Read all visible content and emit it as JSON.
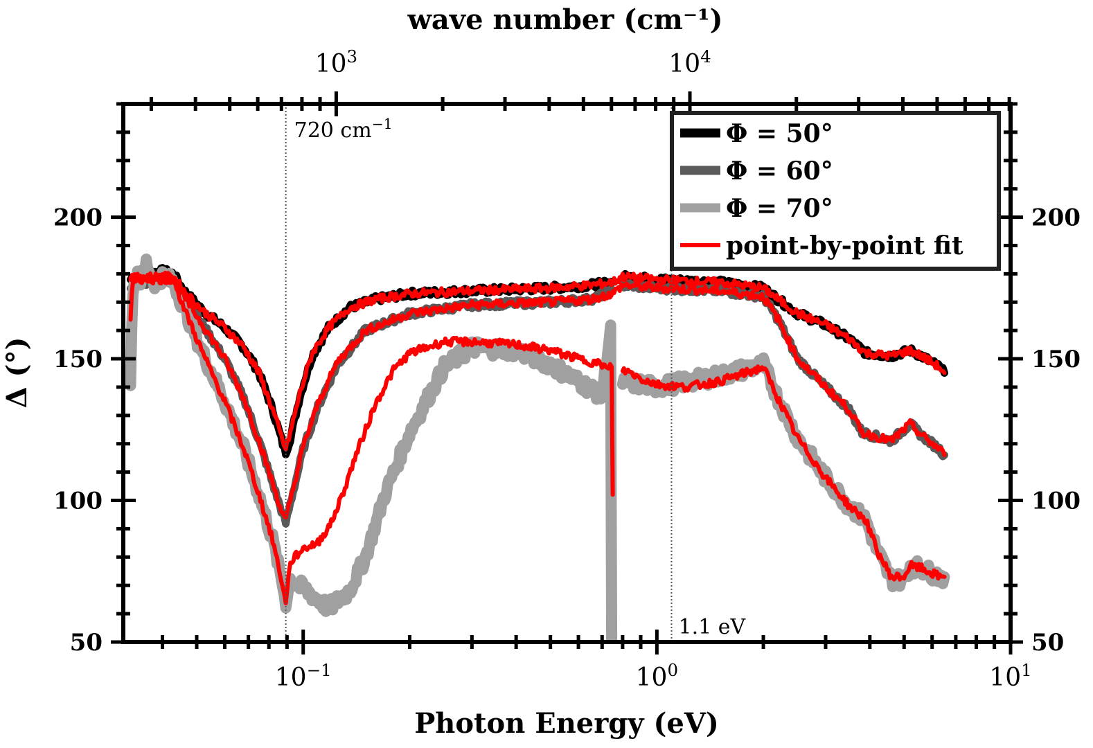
{
  "chart_data": {
    "type": "line",
    "xscale": "log",
    "xlabel": "Photon Energy (eV)",
    "ylabel": "Δ (°)",
    "top_xlabel": "wave number (cm⁻¹)",
    "xlim": [
      0.031,
      10
    ],
    "ylim": [
      50,
      240
    ],
    "x_ticks": [
      {
        "value": 0.1,
        "base": "10",
        "exp": "−1"
      },
      {
        "value": 1,
        "base": "10",
        "exp": "0"
      },
      {
        "value": 10,
        "base": "10",
        "exp": "1"
      }
    ],
    "y_ticks": [
      50,
      100,
      150,
      200
    ],
    "top_ticks": [
      {
        "value": 1000,
        "base": "10",
        "exp": "3"
      },
      {
        "value": 10000,
        "base": "10",
        "exp": "4"
      }
    ],
    "annotations": [
      {
        "x": 0.0893,
        "base": "720 cm",
        "exp": "−1"
      },
      {
        "x": 1.1,
        "base": "1.1 eV",
        "exp": ""
      }
    ],
    "legend": [
      {
        "label": "Φ = 50°",
        "color": "#000000"
      },
      {
        "label": "Φ = 60°",
        "color": "#5a5a5a"
      },
      {
        "label": "Φ = 70°",
        "color": "#a0a0a0"
      },
      {
        "label": "point-by-point fit",
        "color": "#ff0000"
      }
    ],
    "series": [
      {
        "name": "Φ = 50°",
        "color": "#000000",
        "width": 11,
        "noise": 1.2,
        "points": [
          [
            0.0325,
            178
          ],
          [
            0.034,
            181
          ],
          [
            0.036,
            180
          ],
          [
            0.04,
            181
          ],
          [
            0.043,
            180
          ],
          [
            0.046,
            174
          ],
          [
            0.052,
            167
          ],
          [
            0.06,
            161
          ],
          [
            0.068,
            154
          ],
          [
            0.075,
            145
          ],
          [
            0.082,
            132
          ],
          [
            0.0875,
            120
          ],
          [
            0.0893,
            117
          ],
          [
            0.092,
            122
          ],
          [
            0.098,
            137
          ],
          [
            0.106,
            151
          ],
          [
            0.118,
            161
          ],
          [
            0.135,
            168
          ],
          [
            0.16,
            171
          ],
          [
            0.2,
            173
          ],
          [
            0.3,
            174
          ],
          [
            0.5,
            175
          ],
          [
            0.65,
            176
          ],
          [
            0.75,
            177
          ],
          [
            0.755,
            null
          ],
          [
            0.8,
            179
          ],
          [
            1.0,
            178
          ],
          [
            1.5,
            177
          ],
          [
            2.0,
            175
          ],
          [
            2.2,
            171
          ],
          [
            2.5,
            166
          ],
          [
            3.0,
            162
          ],
          [
            3.5,
            157
          ],
          [
            3.9,
            152
          ],
          [
            4.6,
            151
          ],
          [
            5.2,
            153
          ],
          [
            5.6,
            151
          ],
          [
            6.3,
            147
          ],
          [
            6.5,
            145
          ]
        ]
      },
      {
        "name": "Φ = 60°",
        "color": "#5a5a5a",
        "width": 11,
        "noise": 1.2,
        "points": [
          [
            0.0325,
            176
          ],
          [
            0.034,
            178
          ],
          [
            0.036,
            177
          ],
          [
            0.04,
            178
          ],
          [
            0.043,
            178
          ],
          [
            0.046,
            172
          ],
          [
            0.052,
            162
          ],
          [
            0.06,
            150
          ],
          [
            0.068,
            136
          ],
          [
            0.075,
            121
          ],
          [
            0.082,
            106
          ],
          [
            0.0875,
            95
          ],
          [
            0.0893,
            92
          ],
          [
            0.092,
            99
          ],
          [
            0.1,
            118
          ],
          [
            0.11,
            133
          ],
          [
            0.125,
            148
          ],
          [
            0.15,
            160
          ],
          [
            0.2,
            166
          ],
          [
            0.3,
            169
          ],
          [
            0.5,
            170
          ],
          [
            0.65,
            171
          ],
          [
            0.75,
            174
          ],
          [
            0.755,
            null
          ],
          [
            0.8,
            176
          ],
          [
            1.0,
            175
          ],
          [
            1.5,
            174
          ],
          [
            2.0,
            172
          ],
          [
            2.2,
            164
          ],
          [
            2.5,
            150
          ],
          [
            3.0,
            140
          ],
          [
            3.5,
            132
          ],
          [
            3.8,
            124
          ],
          [
            4.6,
            121
          ],
          [
            5.2,
            127
          ],
          [
            5.6,
            123
          ],
          [
            6.3,
            118
          ],
          [
            6.5,
            116
          ]
        ]
      },
      {
        "name": "Φ = 70°",
        "color": "#a0a0a0",
        "width": 16,
        "noise": 2.6,
        "points": [
          [
            0.0325,
            142
          ],
          [
            0.033,
            175
          ],
          [
            0.034,
            181
          ],
          [
            0.035,
            176
          ],
          [
            0.036,
            184
          ],
          [
            0.038,
            177
          ],
          [
            0.04,
            179
          ],
          [
            0.043,
            177
          ],
          [
            0.046,
            168
          ],
          [
            0.052,
            152
          ],
          [
            0.06,
            135
          ],
          [
            0.068,
            118
          ],
          [
            0.075,
            102
          ],
          [
            0.082,
            86
          ],
          [
            0.0875,
            70
          ],
          [
            0.0893,
            64
          ],
          [
            0.092,
            72
          ],
          [
            0.097,
            70
          ],
          [
            0.105,
            67
          ],
          [
            0.118,
            62
          ],
          [
            0.135,
            68
          ],
          [
            0.15,
            80
          ],
          [
            0.17,
            102
          ],
          [
            0.2,
            124
          ],
          [
            0.25,
            147
          ],
          [
            0.3,
            154
          ],
          [
            0.4,
            153
          ],
          [
            0.5,
            148
          ],
          [
            0.6,
            142
          ],
          [
            0.7,
            137
          ],
          [
            0.72,
            150
          ],
          [
            0.74,
            161
          ],
          [
            0.745,
            50
          ],
          [
            0.755,
            null
          ],
          [
            0.8,
            142
          ],
          [
            1.0,
            140
          ],
          [
            1.5,
            144
          ],
          [
            2.0,
            148
          ],
          [
            2.2,
            136
          ],
          [
            2.5,
            122
          ],
          [
            3.0,
            108
          ],
          [
            3.5,
            98
          ],
          [
            3.9,
            93
          ],
          [
            4.2,
            82
          ],
          [
            4.6,
            72
          ],
          [
            5.0,
            72
          ],
          [
            5.2,
            77
          ],
          [
            5.6,
            76
          ],
          [
            6.3,
            73
          ],
          [
            6.5,
            73
          ]
        ]
      },
      {
        "name": "point-by-point fit",
        "color": "#ff0000",
        "width": 6,
        "noise": 1.4,
        "subpaths": [
          [
            [
              0.0325,
              178
            ],
            [
              0.034,
              179
            ],
            [
              0.036,
              179
            ],
            [
              0.04,
              179
            ],
            [
              0.043,
              179
            ],
            [
              0.046,
              174
            ],
            [
              0.052,
              167
            ],
            [
              0.06,
              161
            ],
            [
              0.068,
              154
            ],
            [
              0.075,
              145
            ],
            [
              0.082,
              132
            ],
            [
              0.0875,
              121
            ],
            [
              0.0893,
              118
            ],
            [
              0.092,
              124
            ],
            [
              0.098,
              138
            ],
            [
              0.106,
              152
            ],
            [
              0.118,
              161
            ],
            [
              0.135,
              168
            ],
            [
              0.16,
              171
            ],
            [
              0.2,
              173
            ],
            [
              0.3,
              174
            ],
            [
              0.5,
              175
            ],
            [
              0.65,
              176
            ],
            [
              0.75,
              177
            ],
            [
              0.8,
              179
            ],
            [
              1.0,
              178
            ],
            [
              1.5,
              177
            ],
            [
              2.0,
              175
            ],
            [
              2.2,
              171
            ],
            [
              2.5,
              166
            ],
            [
              3.0,
              162
            ],
            [
              3.5,
              157
            ],
            [
              3.9,
              152
            ],
            [
              4.6,
              151
            ],
            [
              5.2,
              153
            ],
            [
              5.6,
              151
            ],
            [
              6.3,
              147
            ],
            [
              6.5,
              145
            ]
          ],
          [
            [
              0.0325,
              177
            ],
            [
              0.034,
              178
            ],
            [
              0.036,
              178
            ],
            [
              0.04,
              178
            ],
            [
              0.043,
              178
            ],
            [
              0.046,
              172
            ],
            [
              0.052,
              162
            ],
            [
              0.06,
              150
            ],
            [
              0.068,
              136
            ],
            [
              0.075,
              121
            ],
            [
              0.082,
              106
            ],
            [
              0.0875,
              95
            ],
            [
              0.0893,
              93
            ],
            [
              0.092,
              100
            ],
            [
              0.1,
              119
            ],
            [
              0.11,
              134
            ],
            [
              0.125,
              149
            ],
            [
              0.15,
              160
            ],
            [
              0.2,
              166
            ],
            [
              0.3,
              169
            ],
            [
              0.5,
              170
            ],
            [
              0.65,
              171
            ],
            [
              0.75,
              173
            ],
            [
              0.8,
              176
            ],
            [
              1.0,
              175
            ],
            [
              1.5,
              174
            ],
            [
              2.0,
              172
            ],
            [
              2.2,
              164
            ],
            [
              2.5,
              150
            ],
            [
              3.0,
              140
            ],
            [
              3.5,
              132
            ],
            [
              3.8,
              124
            ],
            [
              4.6,
              121
            ],
            [
              5.2,
              127
            ],
            [
              5.6,
              123
            ],
            [
              6.3,
              118
            ],
            [
              6.5,
              116
            ]
          ],
          [
            [
              0.0325,
              165
            ],
            [
              0.033,
              178
            ],
            [
              0.034,
              179
            ],
            [
              0.036,
              178
            ],
            [
              0.04,
              179
            ],
            [
              0.043,
              178
            ],
            [
              0.046,
              168
            ],
            [
              0.052,
              152
            ],
            [
              0.06,
              135
            ],
            [
              0.068,
              118
            ],
            [
              0.075,
              102
            ],
            [
              0.082,
              86
            ],
            [
              0.0875,
              70
            ],
            [
              0.0893,
              63
            ],
            [
              0.091,
              75
            ],
            [
              0.093,
              79
            ],
            [
              0.1,
              83
            ],
            [
              0.11,
              85
            ],
            [
              0.12,
              92
            ],
            [
              0.13,
              103
            ],
            [
              0.14,
              115
            ],
            [
              0.16,
              134
            ],
            [
              0.18,
              146
            ],
            [
              0.2,
              152
            ],
            [
              0.25,
              156
            ],
            [
              0.3,
              156
            ],
            [
              0.4,
              155
            ],
            [
              0.5,
              153
            ],
            [
              0.6,
              150
            ],
            [
              0.7,
              148
            ],
            [
              0.73,
              146
            ],
            [
              0.745,
              148
            ],
            [
              0.75,
              102
            ]
          ],
          [
            [
              0.8,
              146
            ],
            [
              0.85,
              145
            ],
            [
              0.9,
              143
            ],
            [
              1.0,
              141
            ],
            [
              1.2,
              140
            ],
            [
              1.5,
              142
            ],
            [
              2.0,
              147
            ],
            [
              2.2,
              136
            ],
            [
              2.5,
              122
            ],
            [
              3.0,
              108
            ],
            [
              3.5,
              98
            ],
            [
              3.9,
              93
            ],
            [
              4.2,
              82
            ],
            [
              4.6,
              73
            ],
            [
              5.0,
              73
            ],
            [
              5.2,
              77
            ],
            [
              5.6,
              76
            ],
            [
              6.3,
              73
            ],
            [
              6.5,
              73
            ]
          ]
        ]
      }
    ]
  }
}
